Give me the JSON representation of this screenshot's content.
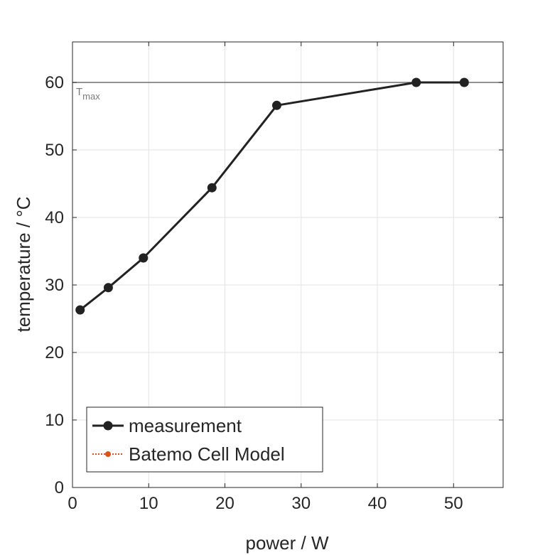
{
  "chart_data": {
    "type": "line",
    "xlabel": "power / W",
    "ylabel": "temperature / °C",
    "xlim": [
      0,
      56.5
    ],
    "ylim": [
      0,
      66
    ],
    "xticks": [
      0,
      10,
      20,
      30,
      40,
      50
    ],
    "yticks": [
      0,
      10,
      20,
      30,
      40,
      50,
      60
    ],
    "grid": true,
    "legend_position": "bottom-left",
    "reference_line": {
      "y": 60,
      "label_main": "T",
      "label_sub": "max",
      "color": "#6e6e6e"
    },
    "series": [
      {
        "name": "measurement",
        "color": "#222222",
        "style": "solid",
        "x": [
          1.0,
          4.7,
          9.3,
          18.3,
          26.8,
          45.1,
          51.4
        ],
        "y": [
          26.3,
          29.6,
          34.0,
          44.4,
          56.6,
          60.0,
          60.0
        ]
      },
      {
        "name": "Batemo Cell Model",
        "color": "#d95319",
        "style": "dotted",
        "x": [],
        "y": []
      }
    ]
  }
}
